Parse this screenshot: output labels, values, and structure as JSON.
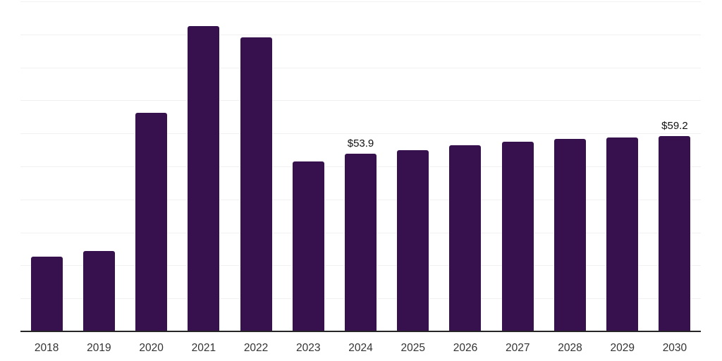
{
  "chart_data": {
    "type": "bar",
    "title": "",
    "xlabel": "",
    "ylabel": "",
    "categories": [
      "2018",
      "2019",
      "2020",
      "2021",
      "2022",
      "2023",
      "2024",
      "2025",
      "2026",
      "2027",
      "2028",
      "2029",
      "2030"
    ],
    "values": [
      22.6,
      24.3,
      66.3,
      92.5,
      89.1,
      51.6,
      53.9,
      55.0,
      56.4,
      57.4,
      58.3,
      58.7,
      59.2
    ],
    "data_labels": {
      "2024": "$53.9",
      "2030": "$59.2"
    },
    "ylim": [
      0,
      100
    ],
    "gridline_step": 10,
    "grid": "horizontal",
    "legend": "none",
    "y_axis_labels_visible": false,
    "colors": {
      "bar": "#36114d",
      "axis_line": "#262626",
      "gridline": "#f1f1f1",
      "tick_label": "#333333",
      "data_label": "#111111",
      "background": "#ffffff"
    }
  }
}
